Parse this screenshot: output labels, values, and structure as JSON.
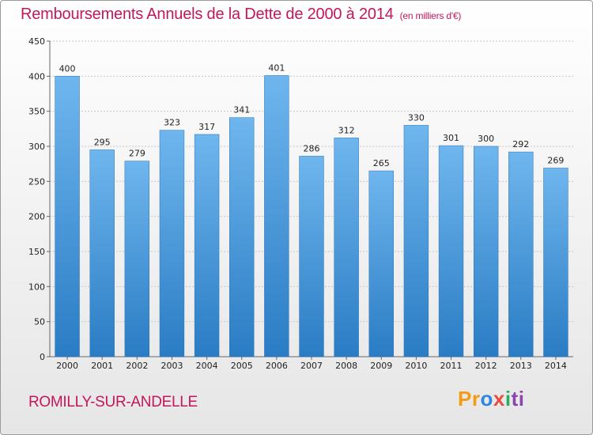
{
  "title": "Remboursements Annuels de la Dette de 2000 à 2014",
  "subtitle": "(en milliers d'€)",
  "commune": "ROMILLY-SUR-ANDELLE",
  "logo": {
    "p1": "Pr",
    "p2": "o",
    "p3": "x",
    "p4": "i",
    "p5": "ti"
  },
  "colors": {
    "bar": "#3b8fd8",
    "bar_light": "#6fb6ee",
    "title": "#c2185b",
    "grid": "#c8c8c8"
  },
  "chart_data": {
    "type": "bar",
    "title": "Remboursements Annuels de la Dette de 2000 à 2014",
    "xlabel": "",
    "ylabel": "",
    "categories": [
      "2000",
      "2001",
      "2002",
      "2003",
      "2004",
      "2005",
      "2006",
      "2007",
      "2008",
      "2009",
      "2010",
      "2011",
      "2012",
      "2013",
      "2014"
    ],
    "values": [
      400,
      295,
      279,
      323,
      317,
      341,
      401,
      286,
      312,
      265,
      330,
      301,
      300,
      292,
      269
    ],
    "ylim": [
      0,
      450
    ],
    "yticks": [
      0,
      50,
      100,
      150,
      200,
      250,
      300,
      350,
      400,
      450
    ],
    "grid": true
  }
}
